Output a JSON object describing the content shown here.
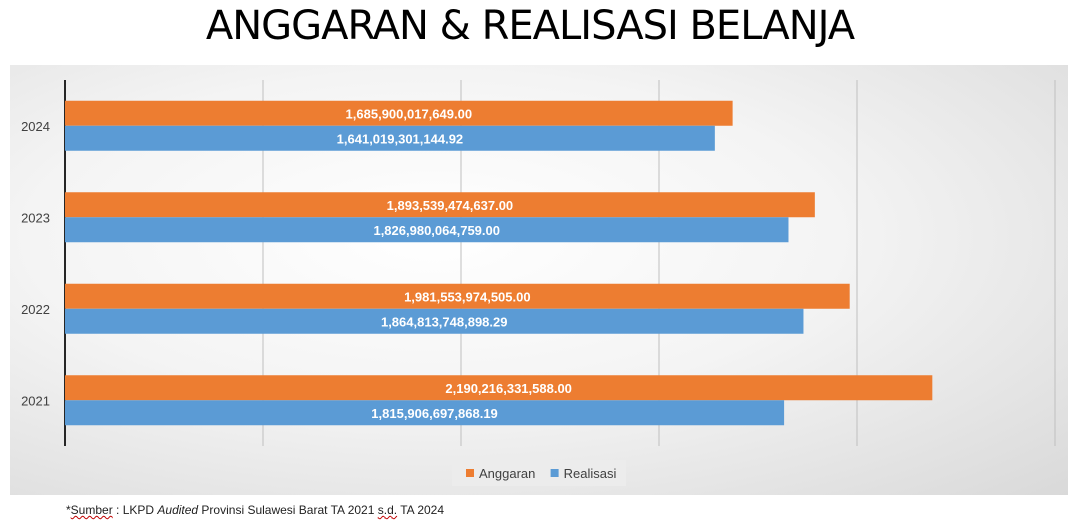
{
  "title": "ANGGARAN & REALISASI BELANJA",
  "source": {
    "prefix": "*",
    "word": "Sumber",
    "mid": " : LKPD ",
    "italic": "Audited",
    "rest": " Provinsi Sulawesi Barat TA 2021 ",
    "sd": "s.d.",
    "end": " TA 2024"
  },
  "chart_data": {
    "type": "bar",
    "orientation": "horizontal",
    "categories": [
      "2024",
      "2023",
      "2022",
      "2021"
    ],
    "series": [
      {
        "name": "Anggaran",
        "color": "#ED7D31",
        "values": [
          1685900017649.0,
          1893539474637.0,
          1981553974505.0,
          2190216331588.0
        ],
        "labels": [
          "1,685,900,017,649.00",
          "1,893,539,474,637.00",
          "1,981,553,974,505.00",
          "2,190,216,331,588.00"
        ]
      },
      {
        "name": "Realisasi",
        "color": "#5B9BD5",
        "values": [
          1641019301144.92,
          1826980064759.0,
          1864813748898.29,
          1815906697868.19
        ],
        "labels": [
          "1,641,019,301,144.92",
          "1,826,980,064,759.00",
          "1,864,813,748,898.29",
          "1,815,906,697,868.19"
        ]
      }
    ],
    "xlim": [
      0,
      2500000000000
    ],
    "grid": true,
    "legend": "bottom"
  }
}
